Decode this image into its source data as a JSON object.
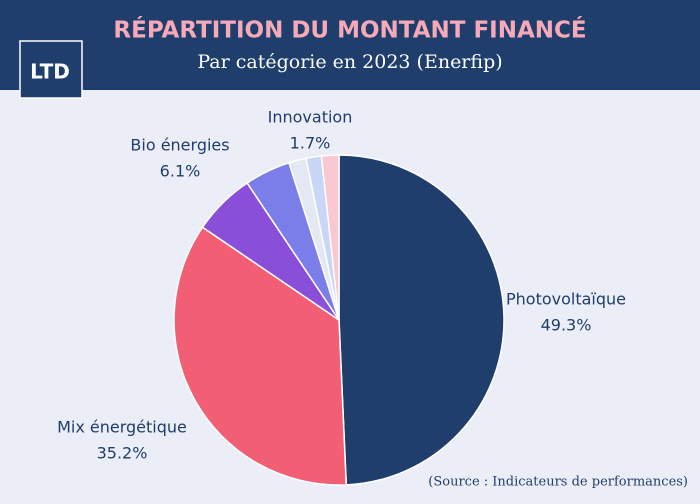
{
  "logo": "LTD",
  "source": "(Source : Indicateurs de performances)",
  "chart_data": {
    "type": "pie",
    "title": "RÉPARTITION DU MONTANT FINANCÉ",
    "subtitle": "Par catégorie en 2023 (Enerfip)",
    "categories": [
      "Photovoltaïque",
      "Mix énergétique",
      "Bio énergies",
      null,
      null,
      null,
      "Innovation"
    ],
    "values": [
      49.3,
      35.2,
      6.1,
      4.5,
      1.7,
      1.5,
      1.7
    ],
    "value_labels": [
      "49.3%",
      "35.2%",
      "6.1%",
      null,
      null,
      null,
      "1.7%"
    ],
    "colors": [
      "#1f3e6b",
      "#f25f75",
      "#8a4fd8",
      "#7b7ee8",
      "#e4e8f2",
      "#c9d6f8",
      "#f9c8d0"
    ]
  }
}
